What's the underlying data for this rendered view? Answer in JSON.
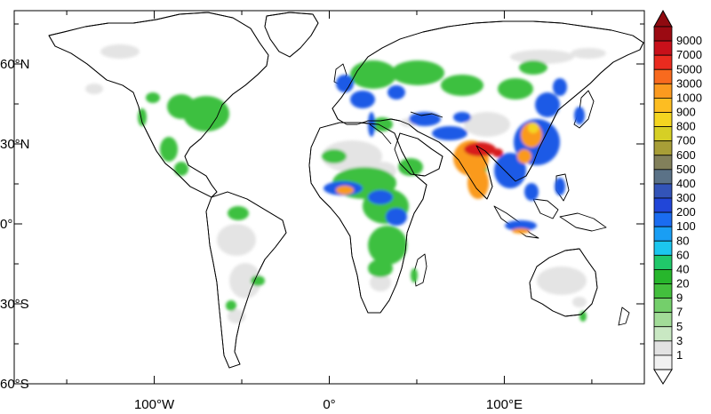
{
  "map": {
    "projection": "equirectangular",
    "lon_range": [
      -180,
      180
    ],
    "lat_range": [
      -60,
      80
    ],
    "x_ticks": [
      {
        "lon": -100,
        "label": "100°W"
      },
      {
        "lon": 0,
        "label": "0°"
      },
      {
        "lon": 100,
        "label": "100°E"
      }
    ],
    "y_ticks": [
      {
        "lat": 60,
        "label": "60°N"
      },
      {
        "lat": 30,
        "label": "30°N"
      },
      {
        "lat": 0,
        "label": "0°"
      },
      {
        "lat": -30,
        "label": "30°S"
      },
      {
        "lat": -60,
        "label": "60°S"
      }
    ],
    "minor_x_ticks": [
      -150,
      -50,
      50,
      150
    ],
    "minor_y_ticks": [
      75,
      45,
      15,
      -15,
      -45
    ]
  },
  "colorbar": {
    "levels": [
      "9000",
      "7000",
      "5000",
      "3000",
      "1000",
      "900",
      "800",
      "700",
      "600",
      "500",
      "400",
      "300",
      "200",
      "100",
      "80",
      "60",
      "40",
      "20",
      "9",
      "7",
      "5",
      "3",
      "1"
    ],
    "colors": [
      "#9b0a12",
      "#c8101a",
      "#ea2b1f",
      "#f86a1e",
      "#fb9a1f",
      "#fdbd22",
      "#f4d520",
      "#d6cf25",
      "#a89e37",
      "#82805b",
      "#5b7287",
      "#3354b8",
      "#2146d8",
      "#1a6cf0",
      "#199ef4",
      "#1cc6ee",
      "#20c86a",
      "#27b62c",
      "#43bf3d",
      "#74cf6b",
      "#a2dc98",
      "#c9e8c3",
      "#e2e2e2",
      "#f1f1f1"
    ],
    "arrow_top_color": "#8f0a10",
    "arrow_bottom_color": "#ffffff"
  }
}
